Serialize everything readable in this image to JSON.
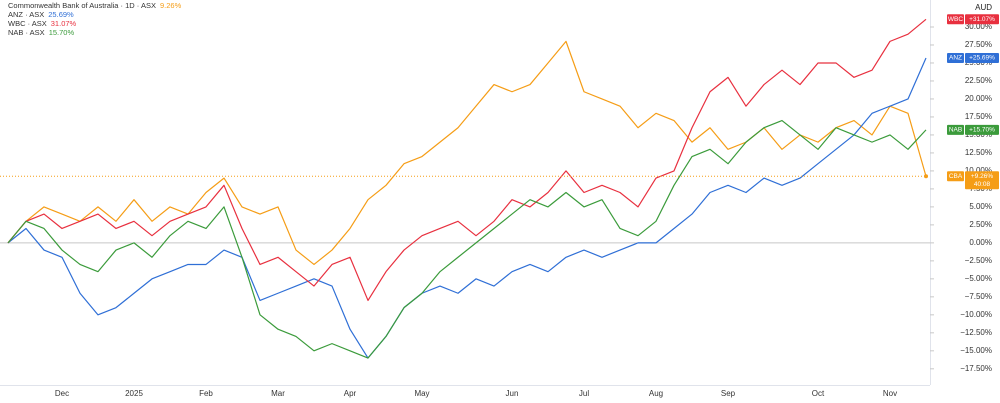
{
  "chart_data": {
    "type": "line",
    "currency": "AUD",
    "categories": [
      null,
      null,
      null,
      "Dec",
      null,
      null,
      null,
      "2025",
      null,
      null,
      null,
      "Feb",
      null,
      null,
      null,
      "Mar",
      null,
      null,
      null,
      "Apr",
      null,
      null,
      null,
      "May",
      null,
      null,
      null,
      null,
      "Jun",
      null,
      null,
      null,
      "Jul",
      null,
      null,
      null,
      "Aug",
      null,
      null,
      null,
      "Sep",
      null,
      null,
      null,
      null,
      "Oct",
      null,
      null,
      null,
      "Nov",
      null,
      null
    ],
    "series": [
      {
        "name": "Commonwealth Bank of Australia · 1D · ASX",
        "short": "CBA",
        "color": "#f59d16",
        "last_label": "9.26%",
        "tag_label": "+9.26%",
        "countdown": "40:08",
        "values": [
          0,
          3,
          5,
          4,
          3,
          5,
          3,
          6,
          3,
          5,
          4,
          7,
          9,
          5,
          4,
          5,
          -1,
          -3,
          -1,
          2,
          6,
          8,
          11,
          12,
          14,
          16,
          19,
          22,
          21,
          22,
          25,
          28,
          21,
          20,
          19,
          16,
          18,
          17,
          14,
          16,
          13,
          14,
          16,
          13,
          15,
          14,
          16,
          17,
          15,
          19,
          18,
          9.26
        ]
      },
      {
        "name": "ANZ · ASX",
        "short": "ANZ",
        "color": "#2f6fd6",
        "last_label": "25.69%",
        "tag_label": "+25.69%",
        "values": [
          0,
          2,
          -1,
          -2,
          -7,
          -10,
          -9,
          -7,
          -5,
          -4,
          -3,
          -3,
          -1,
          -2,
          -8,
          -7,
          -6,
          -5,
          -6,
          -12,
          -16,
          -13,
          -9,
          -7,
          -6,
          -7,
          -5,
          -6,
          -4,
          -3,
          -4,
          -2,
          -1,
          -2,
          -1,
          0,
          0,
          2,
          4,
          7,
          8,
          7,
          9,
          8,
          9,
          11,
          13,
          15,
          18,
          19,
          20,
          25.69
        ]
      },
      {
        "name": "WBC · ASX",
        "short": "WBC",
        "color": "#e8303f",
        "last_label": "31.07%",
        "tag_label": "+31.07%",
        "values": [
          0,
          3,
          4,
          2,
          3,
          4,
          2,
          3,
          1,
          3,
          4,
          5,
          8,
          2,
          -3,
          -2,
          -4,
          -6,
          -3,
          -2,
          -8,
          -4,
          -1,
          1,
          2,
          3,
          1,
          3,
          6,
          5,
          7,
          10,
          7,
          8,
          7,
          5,
          9,
          10,
          16,
          21,
          23,
          19,
          22,
          24,
          22,
          25,
          25,
          23,
          24,
          28,
          29,
          31.07
        ]
      },
      {
        "name": "NAB · ASX",
        "short": "NAB",
        "color": "#3b9b3b",
        "last_label": "15.70%",
        "tag_label": "+15.70%",
        "values": [
          0,
          3,
          2,
          -1,
          -3,
          -4,
          -1,
          0,
          -2,
          1,
          3,
          2,
          5,
          -2,
          -10,
          -12,
          -13,
          -15,
          -14,
          -15,
          -16,
          -13,
          -9,
          -7,
          -4,
          -2,
          0,
          2,
          4,
          6,
          5,
          7,
          5,
          6,
          2,
          1,
          3,
          8,
          12,
          13,
          11,
          14,
          16,
          17,
          15,
          13,
          16,
          15,
          14,
          15,
          13,
          15.7
        ]
      }
    ],
    "ylim": [
      -19.75,
      33.75
    ],
    "yticks": [
      {
        "value": 30,
        "label": "30.00%"
      },
      {
        "value": 27.5,
        "label": "27.50%"
      },
      {
        "value": 25,
        "label": "25.00%"
      },
      {
        "value": 22.5,
        "label": "22.50%"
      },
      {
        "value": 20,
        "label": "20.00%"
      },
      {
        "value": 17.5,
        "label": "17.50%"
      },
      {
        "value": 15,
        "label": "15.00%"
      },
      {
        "value": 12.5,
        "label": "12.50%"
      },
      {
        "value": 10,
        "label": "10.00%"
      },
      {
        "value": 7.5,
        "label": "7.50%"
      },
      {
        "value": 5,
        "label": "5.00%"
      },
      {
        "value": 2.5,
        "label": "2.50%"
      },
      {
        "value": 0,
        "label": "0.00%"
      },
      {
        "value": -2.5,
        "label": "−2.50%"
      },
      {
        "value": -5,
        "label": "−5.00%"
      },
      {
        "value": -7.5,
        "label": "−7.50%"
      },
      {
        "value": -10,
        "label": "−10.00%"
      },
      {
        "value": -12.5,
        "label": "−12.50%"
      },
      {
        "value": -15,
        "label": "−15.00%"
      },
      {
        "value": -17.5,
        "label": "−17.50%"
      }
    ],
    "grid": false
  }
}
